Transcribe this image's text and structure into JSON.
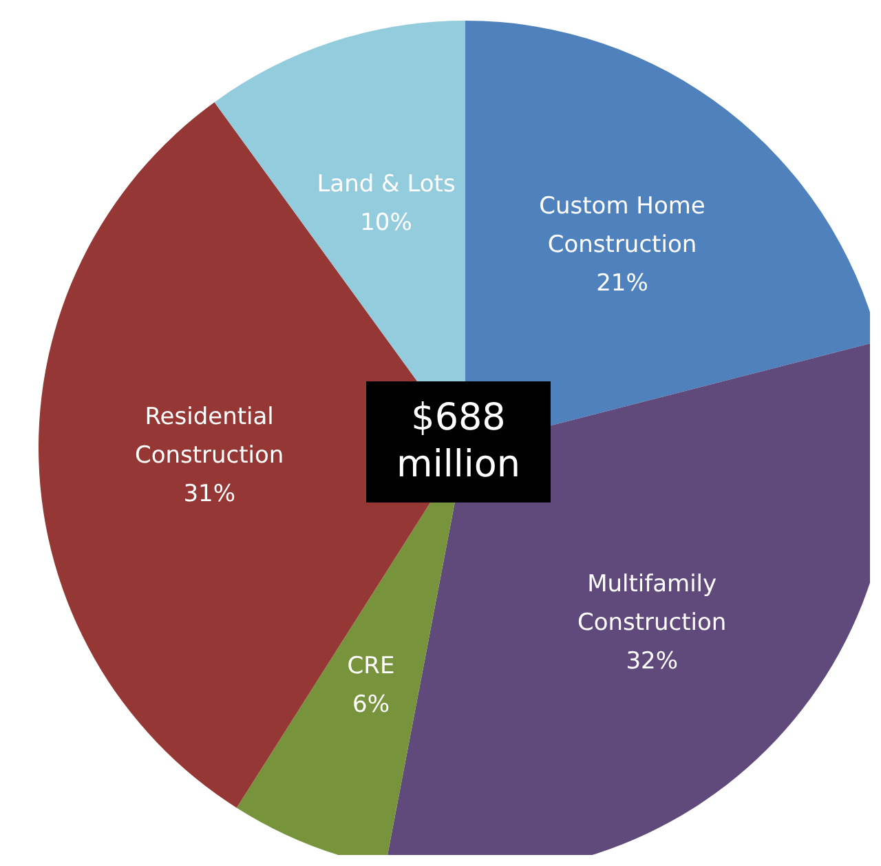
{
  "chart_data": {
    "type": "pie",
    "categories": [
      "Custom Home Construction",
      "Multifamily Construction",
      "CRE",
      "Residential Construction",
      "Land & Lots"
    ],
    "values": [
      21,
      32,
      6,
      31,
      10
    ],
    "value_labels": [
      "21%",
      "32%",
      "6%",
      "31%",
      "10%"
    ],
    "colors": [
      "#4f81bd",
      "#604a7b",
      "#77933c",
      "#953735",
      "#93cddd"
    ],
    "annotations": [
      "$688 million"
    ],
    "legend": false
  }
}
